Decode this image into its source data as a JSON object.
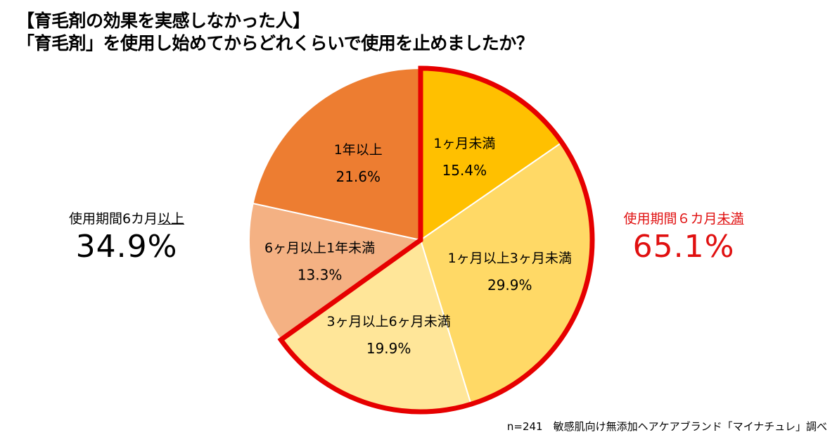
{
  "title_line1": "【育毛剤の効果を実感しなかった人】",
  "title_line2": "「育毛剤」を使用し始めてからどれくらいで使用を止めましたか？",
  "chart_data": {
    "type": "pie",
    "title": "「育毛剤」を使用し始めてからどれくらいで使用を止めましたか？",
    "categories": [
      "1ヶ月未満",
      "1ヶ月以上3ヶ月未満",
      "3ヶ月以上6ヶ月未満",
      "6ヶ月以上1年未満",
      "1年以上"
    ],
    "values": [
      15.4,
      29.9,
      19.9,
      13.3,
      21.6
    ],
    "value_labels": [
      "15.4%",
      "29.9%",
      "19.9%",
      "13.3%",
      "21.6%"
    ],
    "colors": [
      "#FFC000",
      "#FFD966",
      "#FFE699",
      "#F4B183",
      "#ED7D31"
    ],
    "highlight_color": "#E60000",
    "groups": [
      {
        "label_prefix": "使用期間６カ月",
        "label_emph": "未満",
        "value": "65.1%"
      },
      {
        "label_prefix": "使用期間6カ月",
        "label_emph": "以上",
        "value": "34.9%"
      }
    ]
  },
  "footnote": "n=241　敏感肌向け無添加ヘアケアブランド「マイナチュレ」調べ"
}
